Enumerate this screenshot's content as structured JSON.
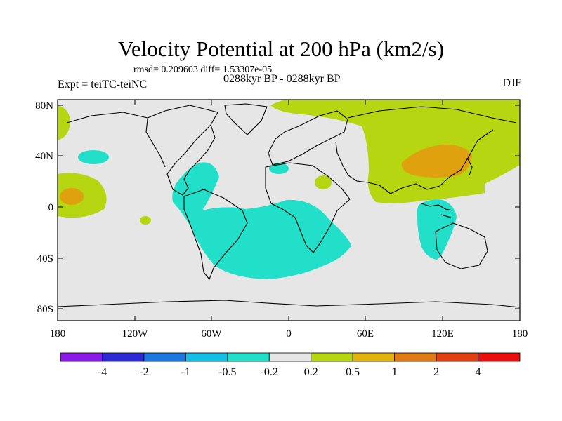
{
  "title": "Velocity Potential at 200 hPa (km2/s)",
  "stats": "rmsd= 0.209603 diff= 1.53307e-05",
  "experiment": "Expt = teiTC-teiNC",
  "period": "0288kyr BP - 0288kyr BP",
  "season": "DJF",
  "lat_ticks": [
    "80N",
    "40N",
    "0",
    "40S",
    "80S"
  ],
  "lon_ticks": [
    "180",
    "120W",
    "60W",
    "0",
    "60E",
    "120E",
    "180"
  ],
  "colorbar": {
    "labels": [
      "-4",
      "-2",
      "-1",
      "-0.5",
      "-0.2",
      "0.2",
      "0.5",
      "1",
      "2",
      "4"
    ],
    "colors": [
      "#8a1ae6",
      "#2b2bd6",
      "#1a78e0",
      "#14bfe6",
      "#21dfc8",
      "#e6e6e6",
      "#b5d611",
      "#e0b40d",
      "#e07a12",
      "#e0400f",
      "#e80c0c"
    ]
  },
  "colors": {
    "background": "#e6e6e6",
    "negative_fill": "#21dfc8",
    "positive_fill": "#b5d611",
    "strong_positive_fill": "#e0a10e"
  }
}
